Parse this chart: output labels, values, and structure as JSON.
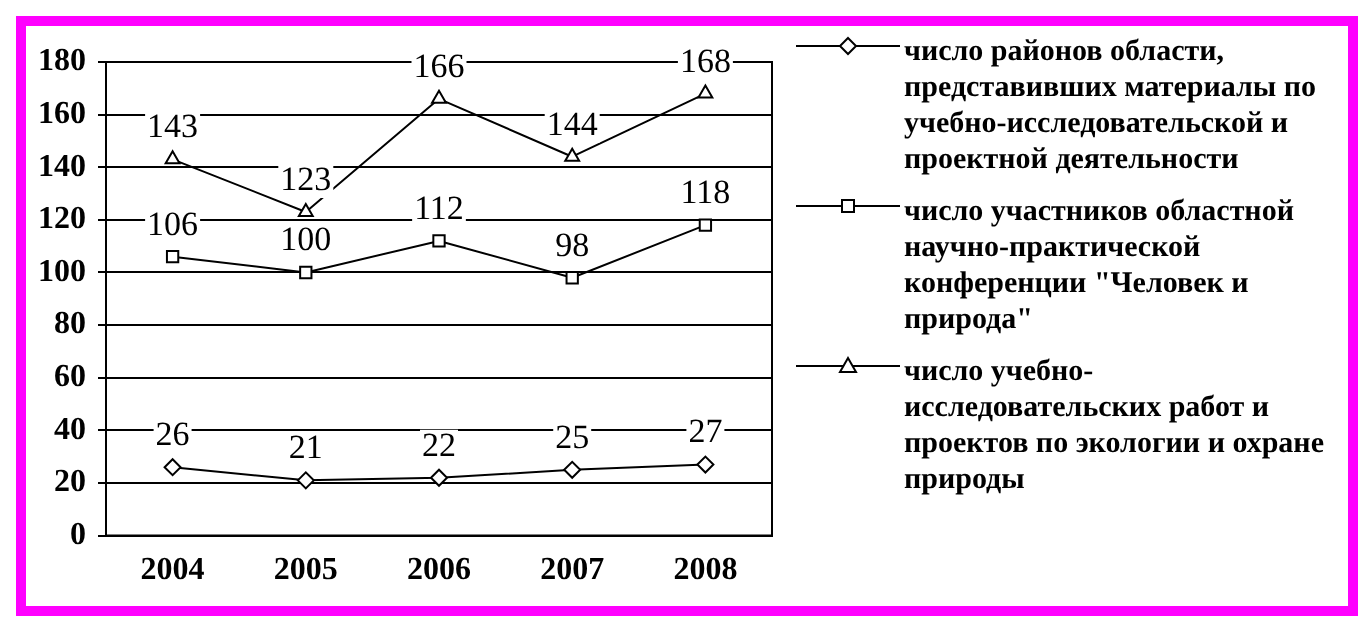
{
  "chart_data": {
    "type": "line",
    "categories": [
      "2004",
      "2005",
      "2006",
      "2007",
      "2008"
    ],
    "series": [
      {
        "name": "число районов области, представивших материалы по учебно-исследовательской и проектной деятельности",
        "color": "#000000",
        "marker": "diamond",
        "values": [
          26,
          21,
          22,
          25,
          27
        ]
      },
      {
        "name": "число участников областной научно-практической конференции \"Человек и природа\"",
        "color": "#000000",
        "marker": "square",
        "values": [
          106,
          100,
          112,
          98,
          118
        ]
      },
      {
        "name": "число учебно-исследовательских работ и проектов по экологии и охране природы",
        "color": "#000000",
        "marker": "triangle",
        "values": [
          143,
          123,
          166,
          144,
          168
        ]
      }
    ],
    "ylim": [
      0,
      180
    ],
    "yticks": [
      0,
      20,
      40,
      60,
      80,
      100,
      120,
      140,
      160,
      180
    ],
    "grid": "y",
    "legend": "right",
    "data_labels": true
  }
}
